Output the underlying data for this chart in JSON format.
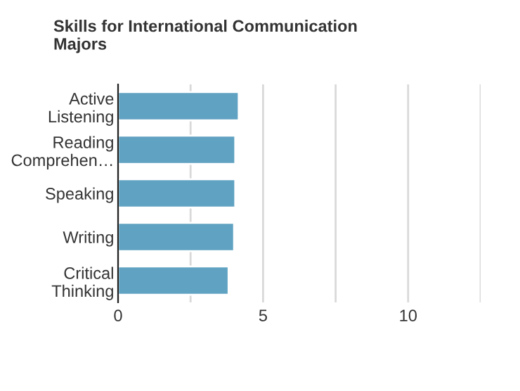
{
  "chart_data": {
    "type": "bar",
    "orientation": "horizontal",
    "title": "Skills for International Communication\nMajors",
    "categories": [
      "Active\nListening",
      "Reading\nComprehen…",
      "Speaking",
      "Writing",
      "Critical\nThinking"
    ],
    "values": [
      4.16,
      4.04,
      4.04,
      4.0,
      3.81
    ],
    "color": "#5fa2c1",
    "xlim": [
      0,
      12.5
    ],
    "xticks": [
      0,
      {
        "value": 2.5,
        "label": null
      },
      5,
      {
        "value": 7.5,
        "label": null
      },
      10,
      {
        "value": 12.5,
        "label": null
      }
    ],
    "grid": "x"
  }
}
